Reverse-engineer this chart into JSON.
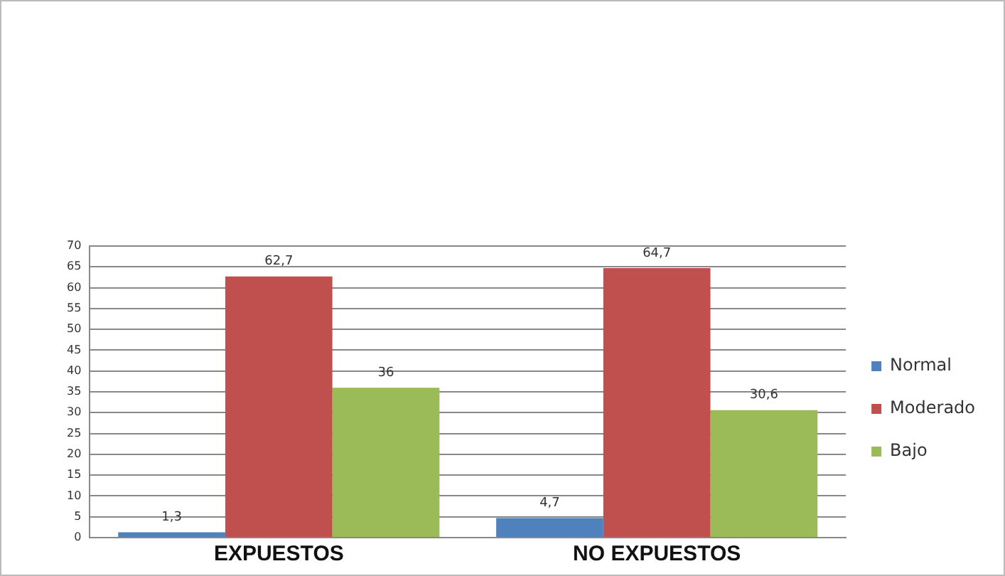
{
  "chart_data": {
    "type": "bar",
    "categories": [
      "EXPUESTOS",
      "NO EXPUESTOS"
    ],
    "series": [
      {
        "name": "Normal",
        "color": "#4f81bd",
        "values": [
          1.3,
          4.7
        ],
        "value_labels": [
          "1,3",
          "4,7"
        ]
      },
      {
        "name": "Moderado",
        "color": "#c0504d",
        "values": [
          62.7,
          64.7
        ],
        "value_labels": [
          "62,7",
          "64,7"
        ]
      },
      {
        "name": "Bajo",
        "color": "#9bbb59",
        "values": [
          36,
          30.6
        ],
        "value_labels": [
          "36",
          "30,6"
        ]
      }
    ],
    "ylim": [
      0,
      70
    ],
    "yticks": [
      0,
      5,
      10,
      15,
      20,
      25,
      30,
      35,
      40,
      45,
      50,
      55,
      60,
      65,
      70
    ],
    "grid": "y",
    "legend": "right"
  }
}
